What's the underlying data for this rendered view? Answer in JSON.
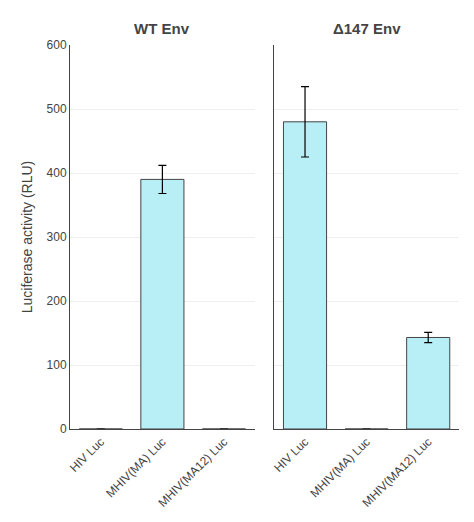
{
  "chart_data": [
    {
      "type": "bar",
      "title": "WT Env",
      "categories": [
        "HIV Luc",
        "MHIV(MA) Luc",
        "MHIV(MA12) Luc"
      ],
      "values": [
        0,
        390,
        0
      ],
      "errors": [
        0,
        22,
        0
      ],
      "color": "#b8eef5",
      "ylabel": "Luciferase activity (RLU)",
      "ylim": [
        0,
        600
      ],
      "yticks": [
        0,
        100,
        200,
        300,
        400,
        500,
        600
      ],
      "grid": true
    },
    {
      "type": "bar",
      "title": "Δ147 Env",
      "categories": [
        "HIV Luc",
        "MHIV(MA) Luc",
        "MHIV(MA12) Luc"
      ],
      "values": [
        480,
        0,
        143
      ],
      "errors": [
        55,
        0,
        8
      ],
      "color": "#b8eef5",
      "ylim": [
        0,
        600
      ],
      "yticks": [
        0,
        100,
        200,
        300,
        400,
        500,
        600
      ],
      "grid": true,
      "tick_labels": "x"
    }
  ]
}
